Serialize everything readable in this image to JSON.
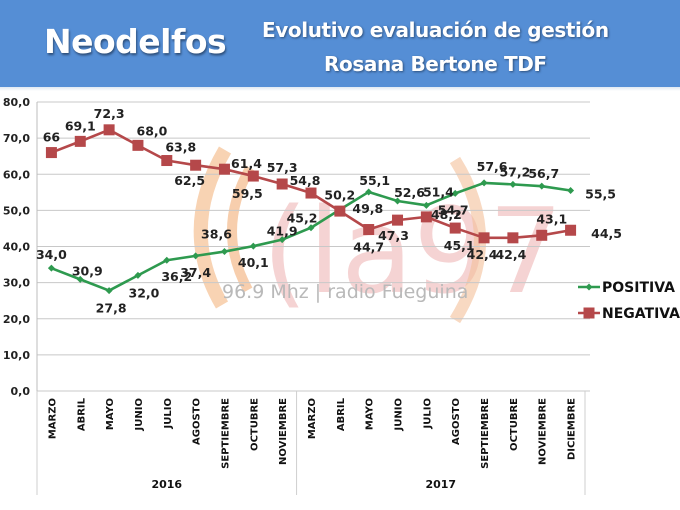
{
  "header": {
    "brand": "Neodelfos",
    "title_line1": "Evolutivo evaluación de gestión",
    "title_line2": "Rosana Bertone TDF",
    "background_color": "#558ed5"
  },
  "watermark": {
    "logo_text": "(la97",
    "caption": "96.9 Mhz | radio Fueguina"
  },
  "chart_data": {
    "type": "line",
    "title": "Evolutivo evaluación de gestión Rosana Bertone TDF",
    "xlabel": "",
    "ylabel": "",
    "ylim": [
      0,
      80
    ],
    "yticks": [
      "0,0",
      "10,0",
      "20,0",
      "30,0",
      "40,0",
      "50,0",
      "60,0",
      "70,0",
      "80,0"
    ],
    "grid": true,
    "legend_position": "right",
    "categories": [
      "MARZO",
      "ABRIL",
      "MAYO",
      "JUNIO",
      "JULIO",
      "AGOSTO",
      "SEPTIEMBRE",
      "OCTUBRE",
      "NOVIEMBRE",
      "MARZO",
      "ABRIL",
      "MAYO",
      "JUNIO",
      "JULIO",
      "AGOSTO",
      "SEPTIEMBRE",
      "OCTUBRE",
      "NOVIEMBRE",
      "DICIEMBRE"
    ],
    "groups": [
      {
        "label": "2016",
        "count": 9
      },
      {
        "label": "2017",
        "count": 10
      }
    ],
    "series": [
      {
        "name": "POSITIVA",
        "color": "#2e9a4f",
        "marker": "diamond",
        "values": [
          34.0,
          30.9,
          27.8,
          32.0,
          36.2,
          37.4,
          38.6,
          40.1,
          41.9,
          45.2,
          50.2,
          55.1,
          52.6,
          51.4,
          54.7,
          57.6,
          57.2,
          56.7,
          55.5
        ],
        "labels": [
          "34,0",
          "30,9",
          "27,8",
          "32,0",
          "36,2",
          "37,4",
          "38,6",
          "40,1",
          "41,9",
          "45,2",
          "50,2",
          "55,1",
          "52,6",
          "51,4",
          "54,7",
          "57,6",
          "57,2",
          "56,7",
          "55,5"
        ]
      },
      {
        "name": "NEGATIVA",
        "color": "#b5484a",
        "marker": "square",
        "values": [
          66.0,
          69.1,
          72.3,
          68.0,
          63.8,
          62.5,
          61.4,
          59.5,
          57.3,
          54.8,
          49.8,
          44.7,
          47.3,
          48.2,
          45.1,
          42.4,
          42.4,
          43.1,
          44.5
        ],
        "labels": [
          "66",
          "69,1",
          "72,3",
          "68,0",
          "63,8",
          "62,5",
          "61,4",
          "59,5",
          "57,3",
          "54,8",
          "49,8",
          "44,7",
          "47,3",
          "48,2",
          "45,1",
          "42,4",
          "42,4",
          "43,1",
          "44,5"
        ]
      }
    ]
  }
}
